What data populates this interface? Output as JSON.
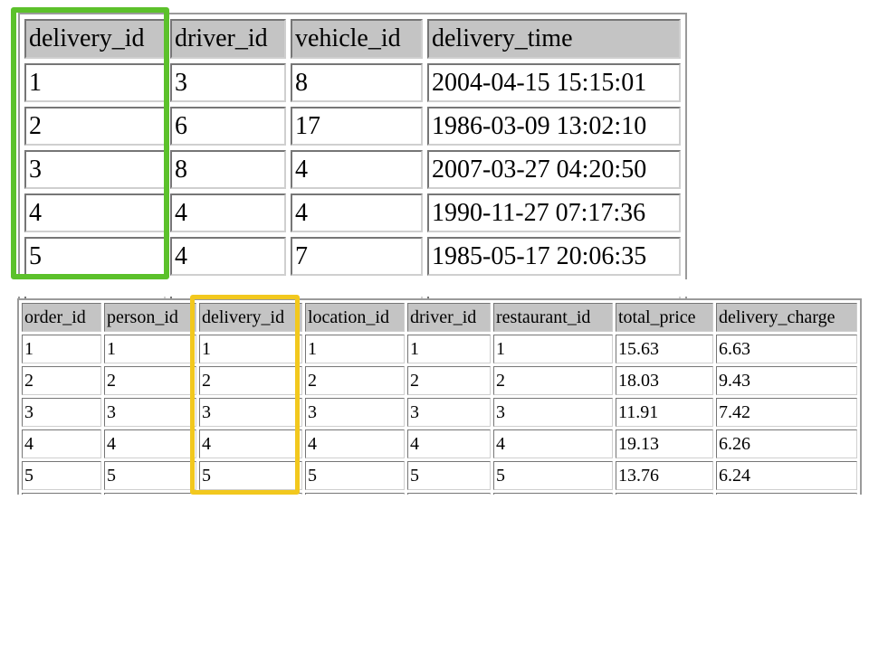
{
  "deliveries_table": {
    "headers": [
      "delivery_id",
      "driver_id",
      "vehicle_id",
      "delivery_time"
    ],
    "rows": [
      [
        "1",
        "3",
        "8",
        "2004-04-15 15:15:01"
      ],
      [
        "2",
        "6",
        "17",
        "1986-03-09 13:02:10"
      ],
      [
        "3",
        "8",
        "4",
        "2007-03-27 04:20:50"
      ],
      [
        "4",
        "4",
        "4",
        "1990-11-27 07:17:36"
      ],
      [
        "5",
        "4",
        "7",
        "1985-05-17 20:06:35"
      ],
      [
        "",
        "",
        "",
        ""
      ]
    ]
  },
  "orders_table": {
    "headers": [
      "order_id",
      "person_id",
      "delivery_id",
      "location_id",
      "driver_id",
      "restaurant_id",
      "total_price",
      "delivery_charge"
    ],
    "rows": [
      [
        "1",
        "1",
        "1",
        "1",
        "1",
        "1",
        "15.63",
        "6.63"
      ],
      [
        "2",
        "2",
        "2",
        "2",
        "2",
        "2",
        "18.03",
        "9.43"
      ],
      [
        "3",
        "3",
        "3",
        "3",
        "3",
        "3",
        "11.91",
        "7.42"
      ],
      [
        "4",
        "4",
        "4",
        "4",
        "4",
        "4",
        "19.13",
        "6.26"
      ],
      [
        "5",
        "5",
        "5",
        "5",
        "5",
        "5",
        "13.76",
        "6.24"
      ],
      [
        "",
        "",
        "",
        "",
        "",
        "",
        "",
        ""
      ]
    ]
  },
  "highlights": {
    "deliveries_delivery_id_color": "#5cc12b",
    "orders_delivery_id_color": "#f2c81e"
  }
}
